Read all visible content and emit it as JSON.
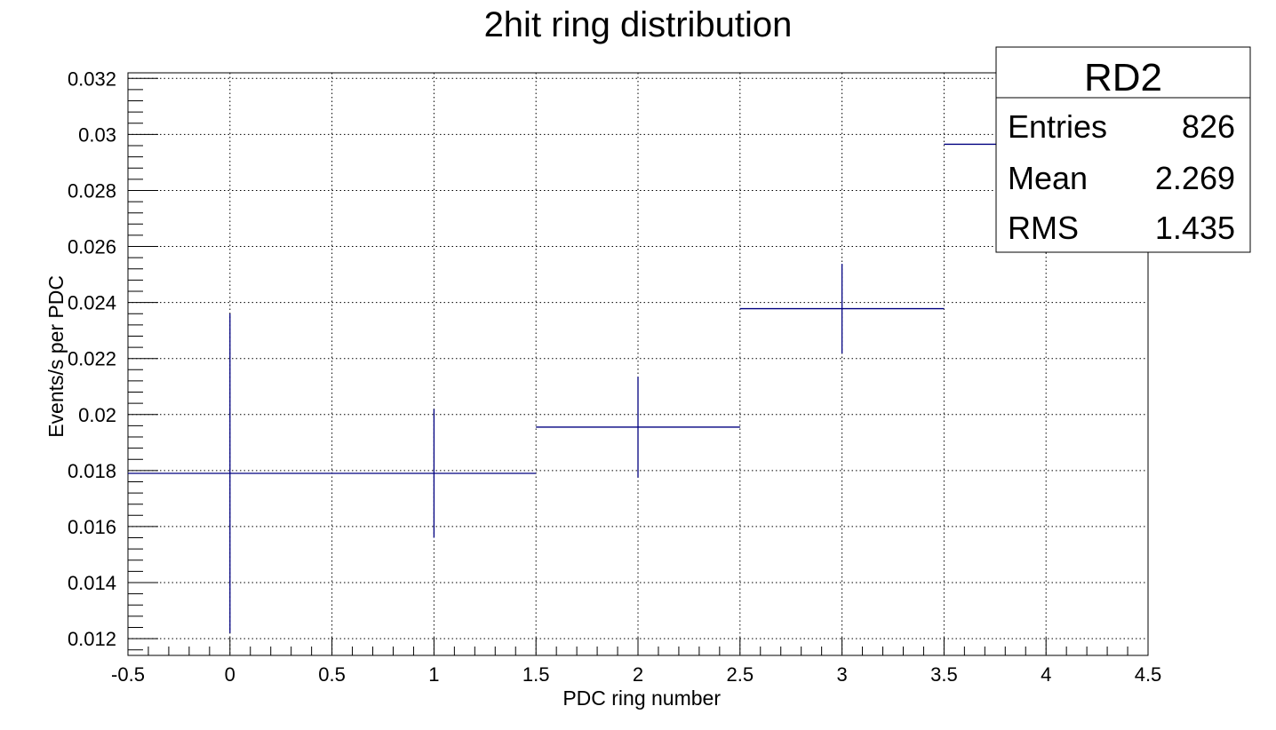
{
  "chart_data": {
    "type": "histogram",
    "title": "2hit ring distribution",
    "xlabel": "PDC ring number",
    "ylabel": "Events/s per PDC",
    "xlim": [
      -0.5,
      4.5
    ],
    "ylim": [
      0.0114,
      0.0322
    ],
    "grid": true,
    "x_ticks": [
      "-0.5",
      "0",
      "0.5",
      "1",
      "1.5",
      "2",
      "2.5",
      "3",
      "3.5",
      "4",
      "4.5"
    ],
    "y_ticks": [
      "0.012",
      "0.014",
      "0.016",
      "0.018",
      "0.02",
      "0.022",
      "0.024",
      "0.026",
      "0.028",
      "0.03",
      "0.032"
    ],
    "series_color": "#000080",
    "bins": [
      {
        "x": 0,
        "xlow": -0.5,
        "xhigh": 0.5,
        "value": 0.0179,
        "err": 0.0057
      },
      {
        "x": 1,
        "xlow": 0.5,
        "xhigh": 1.5,
        "value": 0.0179,
        "err": 0.0023
      },
      {
        "x": 2,
        "xlow": 1.5,
        "xhigh": 2.5,
        "value": 0.01955,
        "err": 0.0018
      },
      {
        "x": 3,
        "xlow": 2.5,
        "xhigh": 3.5,
        "value": 0.02378,
        "err": 0.0016
      },
      {
        "x": 4,
        "xlow": 3.5,
        "xhigh": 4.5,
        "value": 0.02965,
        "err": 0.0015
      }
    ]
  },
  "stats_box": {
    "title": "RD2",
    "rows": [
      {
        "label": "Entries",
        "value": "826"
      },
      {
        "label": "Mean",
        "value": "2.269"
      },
      {
        "label": "RMS",
        "value": "1.435"
      }
    ]
  }
}
